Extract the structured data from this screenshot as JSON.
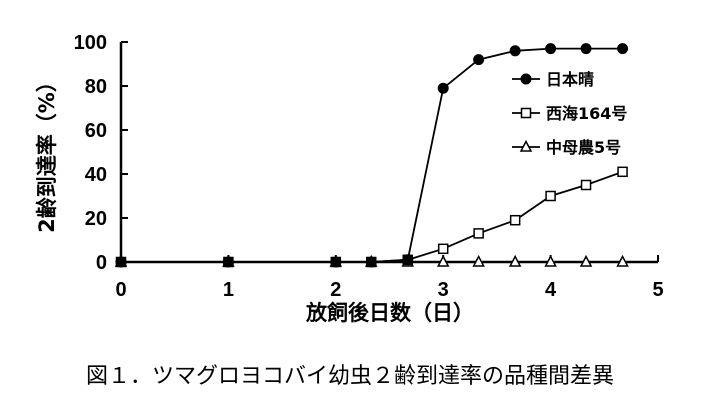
{
  "chart_data": {
    "type": "line",
    "xlabel": "放飼後日数（日）",
    "ylabel": "2齢到達率（%）",
    "xlim": [
      0,
      5
    ],
    "ylim": [
      0,
      100
    ],
    "xticks": [
      0,
      1,
      2,
      3,
      4,
      5
    ],
    "yticks": [
      0,
      20,
      40,
      60,
      80,
      100
    ],
    "grid": false,
    "legend_position": "right",
    "series": [
      {
        "name": "日本晴",
        "marker": "filled-circle",
        "color": "#000000",
        "x": [
          0,
          1,
          2,
          2.33,
          2.67,
          3,
          3.33,
          3.67,
          4,
          4.33,
          4.67
        ],
        "y": [
          0,
          0,
          0,
          0,
          1,
          79,
          92,
          96,
          97,
          97,
          97
        ]
      },
      {
        "name": "西海164号",
        "marker": "open-square",
        "color": "#000000",
        "x": [
          0,
          1,
          2,
          2.33,
          2.67,
          3,
          3.33,
          3.67,
          4,
          4.33,
          4.67
        ],
        "y": [
          0,
          0,
          0,
          0,
          1,
          6,
          13,
          19,
          30,
          35,
          41
        ]
      },
      {
        "name": "中母農5号",
        "marker": "open-triangle",
        "color": "#000000",
        "x": [
          0,
          1,
          2,
          2.33,
          2.67,
          3,
          3.33,
          3.67,
          4,
          4.33,
          4.67
        ],
        "y": [
          0,
          0,
          0,
          0,
          0,
          0,
          0,
          0,
          0,
          0,
          0
        ]
      }
    ]
  },
  "caption": "図１．ツマグロヨコバイ幼虫２齢到達率の品種間差異"
}
